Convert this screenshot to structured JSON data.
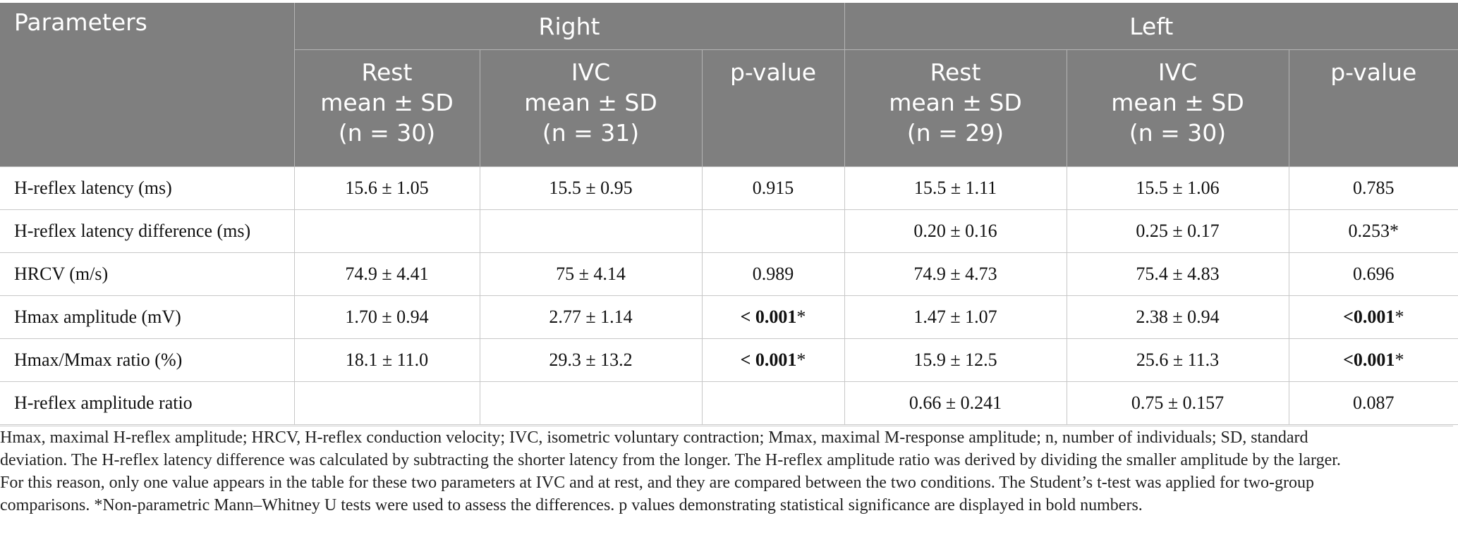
{
  "table": {
    "header_top": {
      "parameters": "Parameters",
      "right": "Right",
      "left": "Left"
    },
    "header_sub": [
      {
        "l1": "Rest",
        "l2": "mean ± SD",
        "l3": "(n = 30)"
      },
      {
        "l1": "IVC",
        "l2": "mean ± SD",
        "l3": "(n = 31)"
      },
      {
        "l1": "p-value",
        "l2": "",
        "l3": ""
      },
      {
        "l1": "Rest",
        "l2": "mean ± SD",
        "l3": "(n = 29)"
      },
      {
        "l1": "IVC",
        "l2": "mean ± SD",
        "l3": "(n = 30)"
      },
      {
        "l1": "p-value",
        "l2": "",
        "l3": ""
      }
    ],
    "rows": [
      {
        "label": "H-reflex latency (ms)",
        "r_rest": "15.6 ± 1.05",
        "r_ivc": "15.5 ± 0.95",
        "r_p": "0.915",
        "r_p_sig": false,
        "r_p_mark": "",
        "l_rest": "15.5 ± 1.11",
        "l_ivc": "15.5 ± 1.06",
        "l_p": "0.785",
        "l_p_sig": false,
        "l_p_mark": ""
      },
      {
        "label": "H-reflex latency difference (ms)",
        "r_rest": "",
        "r_ivc": "",
        "r_p": "",
        "r_p_sig": false,
        "r_p_mark": "",
        "l_rest": "0.20 ± 0.16",
        "l_ivc": "0.25 ± 0.17",
        "l_p": "0.253",
        "l_p_sig": false,
        "l_p_mark": "*"
      },
      {
        "label": "HRCV (m/s)",
        "r_rest": "74.9 ± 4.41",
        "r_ivc": "75 ± 4.14",
        "r_p": "0.989",
        "r_p_sig": false,
        "r_p_mark": "",
        "l_rest": "74.9 ± 4.73",
        "l_ivc": "75.4 ± 4.83",
        "l_p": "0.696",
        "l_p_sig": false,
        "l_p_mark": ""
      },
      {
        "label": "Hmax amplitude (mV)",
        "r_rest": "1.70 ± 0.94",
        "r_ivc": "2.77 ± 1.14",
        "r_p": "< 0.001",
        "r_p_sig": true,
        "r_p_mark": "*",
        "l_rest": "1.47 ± 1.07",
        "l_ivc": "2.38 ± 0.94",
        "l_p": "<0.001",
        "l_p_sig": true,
        "l_p_mark": "*"
      },
      {
        "label": "Hmax/Mmax ratio (%)",
        "r_rest": "18.1 ± 11.0",
        "r_ivc": "29.3 ± 13.2",
        "r_p": "< 0.001",
        "r_p_sig": true,
        "r_p_mark": "*",
        "l_rest": "15.9 ± 12.5",
        "l_ivc": "25.6 ± 11.3",
        "l_p": "<0.001",
        "l_p_sig": true,
        "l_p_mark": "*"
      },
      {
        "label": "H-reflex amplitude ratio",
        "r_rest": "",
        "r_ivc": "",
        "r_p": "",
        "r_p_sig": false,
        "r_p_mark": "",
        "l_rest": "0.66 ± 0.241",
        "l_ivc": "0.75 ± 0.157",
        "l_p": "0.087",
        "l_p_sig": false,
        "l_p_mark": ""
      }
    ]
  },
  "footnote": [
    "Hmax, maximal H-reflex amplitude; HRCV, H-reflex conduction velocity; IVC, isometric voluntary contraction; Mmax, maximal M-response amplitude; n, number of individuals; SD, standard",
    "deviation. The H-reflex latency difference was calculated by subtracting the shorter latency from the longer. The H-reflex amplitude ratio was derived by dividing the smaller amplitude by the larger.",
    "For this reason, only one value appears in the table for these two parameters at IVC and at rest, and they are compared between the two conditions. The Student’s t-test was applied for two-group",
    "comparisons. *Non-parametric Mann–Whitney U tests were used to assess the differences. p values demonstrating statistical significance are displayed in bold numbers."
  ],
  "colors": {
    "header_bg": "#7f7f7f",
    "header_text": "#ffffff",
    "grid": "#c8c8c8"
  }
}
